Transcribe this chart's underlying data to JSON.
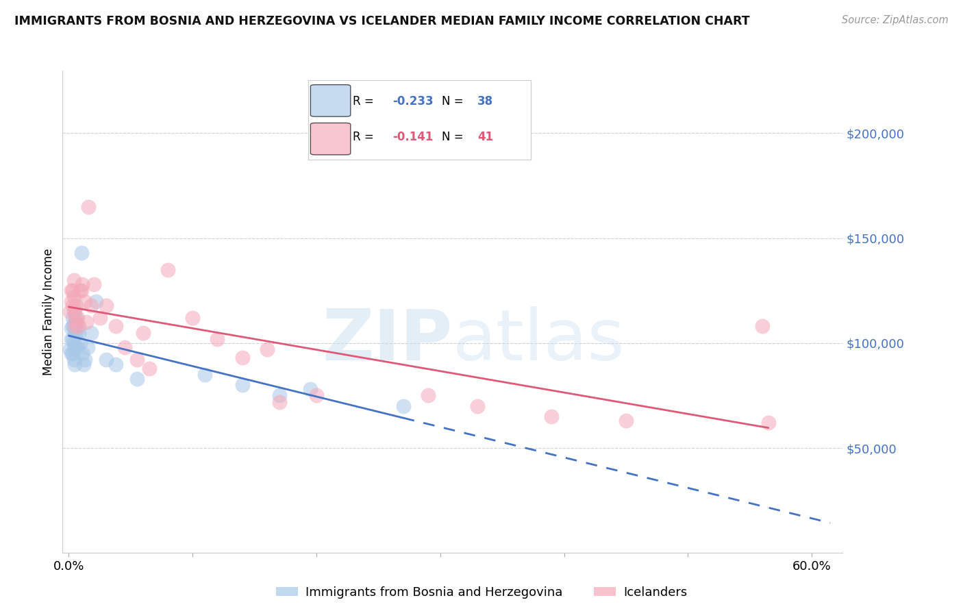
{
  "title": "IMMIGRANTS FROM BOSNIA AND HERZEGOVINA VS ICELANDER MEDIAN FAMILY INCOME CORRELATION CHART",
  "source": "Source: ZipAtlas.com",
  "ylabel": "Median Family Income",
  "xlim_min": -0.005,
  "xlim_max": 0.625,
  "ylim_min": 0,
  "ylim_max": 230000,
  "yticks": [
    0,
    50000,
    100000,
    150000,
    200000
  ],
  "ytick_labels": [
    "",
    "$50,000",
    "$100,000",
    "$150,000",
    "$200,000"
  ],
  "xticks": [
    0.0,
    0.1,
    0.2,
    0.3,
    0.4,
    0.5,
    0.6
  ],
  "xtick_labels": [
    "0.0%",
    "",
    "",
    "",
    "",
    "",
    "60.0%"
  ],
  "blue_R": -0.233,
  "blue_N": 38,
  "pink_R": -0.141,
  "pink_N": 41,
  "blue_label": "Immigrants from Bosnia and Herzegovina",
  "pink_label": "Icelanders",
  "blue_scatter_color": "#a8c8e8",
  "pink_scatter_color": "#f4a8b8",
  "blue_line_color": "#4472c4",
  "pink_line_color": "#e05878",
  "watermark_color": "#c8dff0",
  "bg_color": "#ffffff",
  "grid_color": "#d0d0d0",
  "ytick_color": "#4472c4",
  "blue_x": [
    0.001,
    0.002,
    0.002,
    0.002,
    0.003,
    0.003,
    0.003,
    0.003,
    0.004,
    0.004,
    0.004,
    0.004,
    0.005,
    0.005,
    0.005,
    0.005,
    0.006,
    0.006,
    0.006,
    0.007,
    0.007,
    0.008,
    0.009,
    0.01,
    0.011,
    0.012,
    0.013,
    0.015,
    0.018,
    0.022,
    0.03,
    0.038,
    0.055,
    0.11,
    0.14,
    0.17,
    0.195,
    0.27
  ],
  "blue_y": [
    97000,
    107000,
    102000,
    95000,
    112000,
    108000,
    102000,
    95000,
    115000,
    108000,
    100000,
    92000,
    110000,
    105000,
    98000,
    90000,
    112000,
    105000,
    98000,
    108000,
    98000,
    105000,
    100000,
    143000,
    95000,
    90000,
    92000,
    98000,
    105000,
    120000,
    92000,
    90000,
    83000,
    85000,
    80000,
    75000,
    78000,
    70000
  ],
  "pink_x": [
    0.001,
    0.002,
    0.002,
    0.003,
    0.003,
    0.004,
    0.004,
    0.005,
    0.005,
    0.006,
    0.006,
    0.007,
    0.008,
    0.009,
    0.01,
    0.011,
    0.013,
    0.014,
    0.016,
    0.018,
    0.02,
    0.025,
    0.03,
    0.038,
    0.045,
    0.055,
    0.065,
    0.08,
    0.1,
    0.12,
    0.14,
    0.16,
    0.2,
    0.29,
    0.33,
    0.39,
    0.45,
    0.56,
    0.565,
    0.17,
    0.06
  ],
  "pink_y": [
    115000,
    125000,
    120000,
    125000,
    118000,
    130000,
    122000,
    115000,
    108000,
    118000,
    110000,
    112000,
    108000,
    125000,
    125000,
    128000,
    120000,
    110000,
    165000,
    118000,
    128000,
    112000,
    118000,
    108000,
    98000,
    92000,
    88000,
    135000,
    112000,
    102000,
    93000,
    97000,
    75000,
    75000,
    70000,
    65000,
    63000,
    108000,
    62000,
    72000,
    105000
  ]
}
